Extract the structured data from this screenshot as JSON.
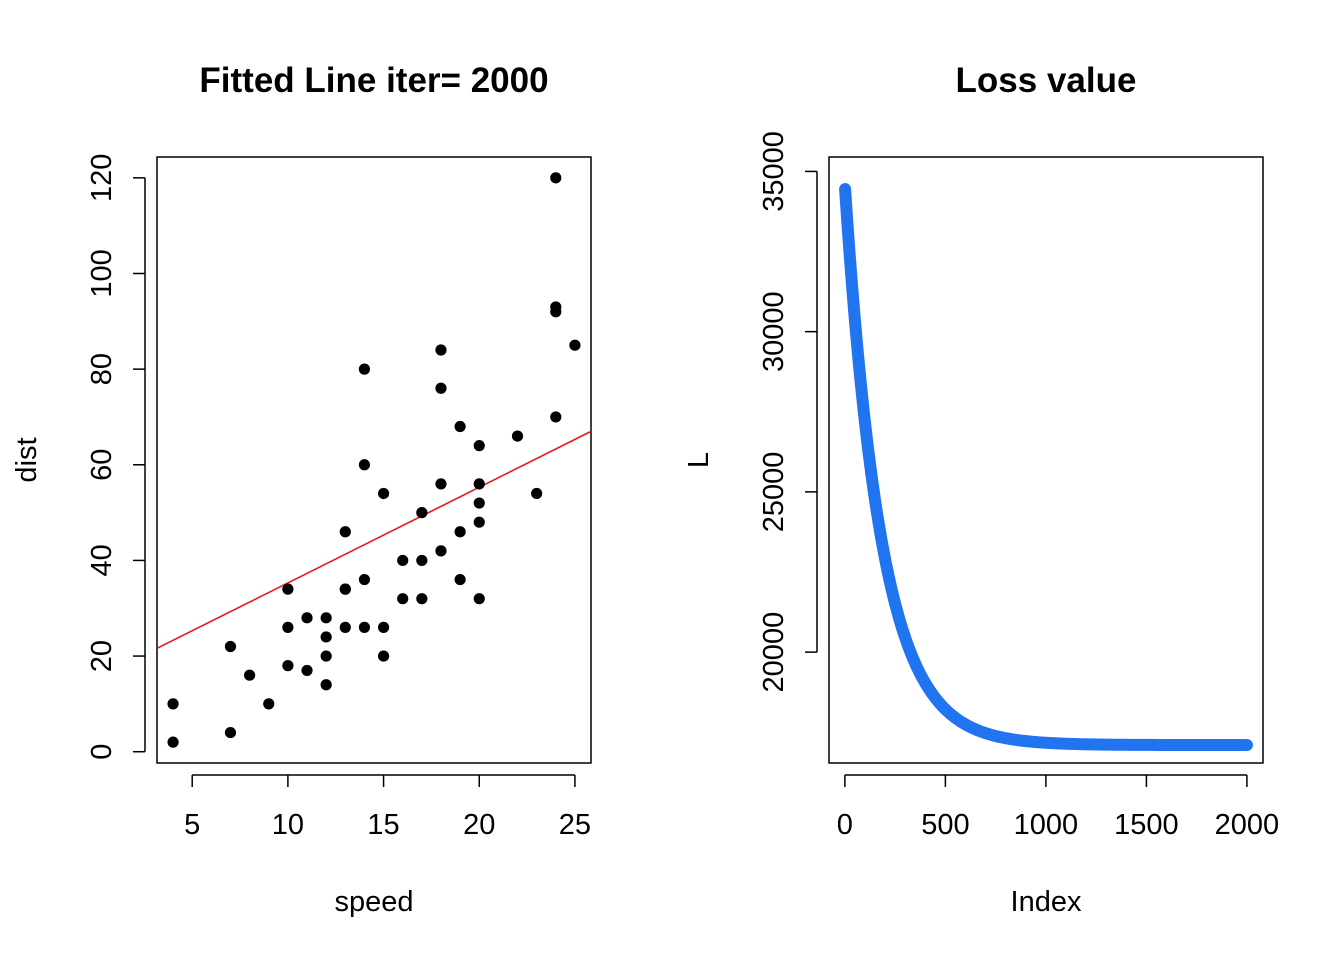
{
  "chart_data": [
    {
      "type": "scatter",
      "title": "Fitted Line iter= 2000",
      "xlabel": "speed",
      "ylabel": "dist",
      "xlim": [
        3.16,
        25.84
      ],
      "ylim": [
        -2.36,
        124.36
      ],
      "xticks": [
        5,
        10,
        15,
        20,
        25
      ],
      "yticks": [
        0,
        20,
        40,
        60,
        80,
        100,
        120
      ],
      "point_color": "#000000",
      "line_color": "#e41a1c",
      "points": [
        [
          4,
          2
        ],
        [
          4,
          10
        ],
        [
          7,
          4
        ],
        [
          7,
          22
        ],
        [
          8,
          16
        ],
        [
          9,
          10
        ],
        [
          10,
          18
        ],
        [
          10,
          26
        ],
        [
          10,
          34
        ],
        [
          11,
          17
        ],
        [
          11,
          28
        ],
        [
          12,
          14
        ],
        [
          12,
          20
        ],
        [
          12,
          24
        ],
        [
          12,
          28
        ],
        [
          13,
          26
        ],
        [
          13,
          34
        ],
        [
          13,
          34
        ],
        [
          13,
          46
        ],
        [
          14,
          26
        ],
        [
          14,
          36
        ],
        [
          14,
          60
        ],
        [
          14,
          80
        ],
        [
          15,
          20
        ],
        [
          15,
          26
        ],
        [
          15,
          54
        ],
        [
          16,
          32
        ],
        [
          16,
          40
        ],
        [
          17,
          32
        ],
        [
          17,
          40
        ],
        [
          17,
          50
        ],
        [
          18,
          42
        ],
        [
          18,
          56
        ],
        [
          18,
          76
        ],
        [
          18,
          84
        ],
        [
          19,
          36
        ],
        [
          19,
          46
        ],
        [
          19,
          68
        ],
        [
          20,
          32
        ],
        [
          20,
          48
        ],
        [
          20,
          52
        ],
        [
          20,
          56
        ],
        [
          20,
          64
        ],
        [
          22,
          66
        ],
        [
          23,
          54
        ],
        [
          24,
          70
        ],
        [
          24,
          92
        ],
        [
          24,
          93
        ],
        [
          24,
          120
        ],
        [
          25,
          85
        ]
      ],
      "fitted_line": {
        "intercept": 15.3,
        "slope": 2.0
      }
    },
    {
      "type": "line",
      "title": "Loss value",
      "xlabel": "Index",
      "ylabel": "L",
      "xlim": [
        -79,
        2080
      ],
      "ylim": [
        16540,
        35450
      ],
      "xticks": [
        0,
        500,
        1000,
        1500,
        2000
      ],
      "yticks": [
        20000,
        25000,
        30000,
        35000
      ],
      "series_color": "#2174f0",
      "loss_curve": {
        "start_index": 1,
        "end_index": 2000,
        "initial": 34450,
        "final": 17100,
        "decay_rate": 0.0055
      }
    }
  ]
}
